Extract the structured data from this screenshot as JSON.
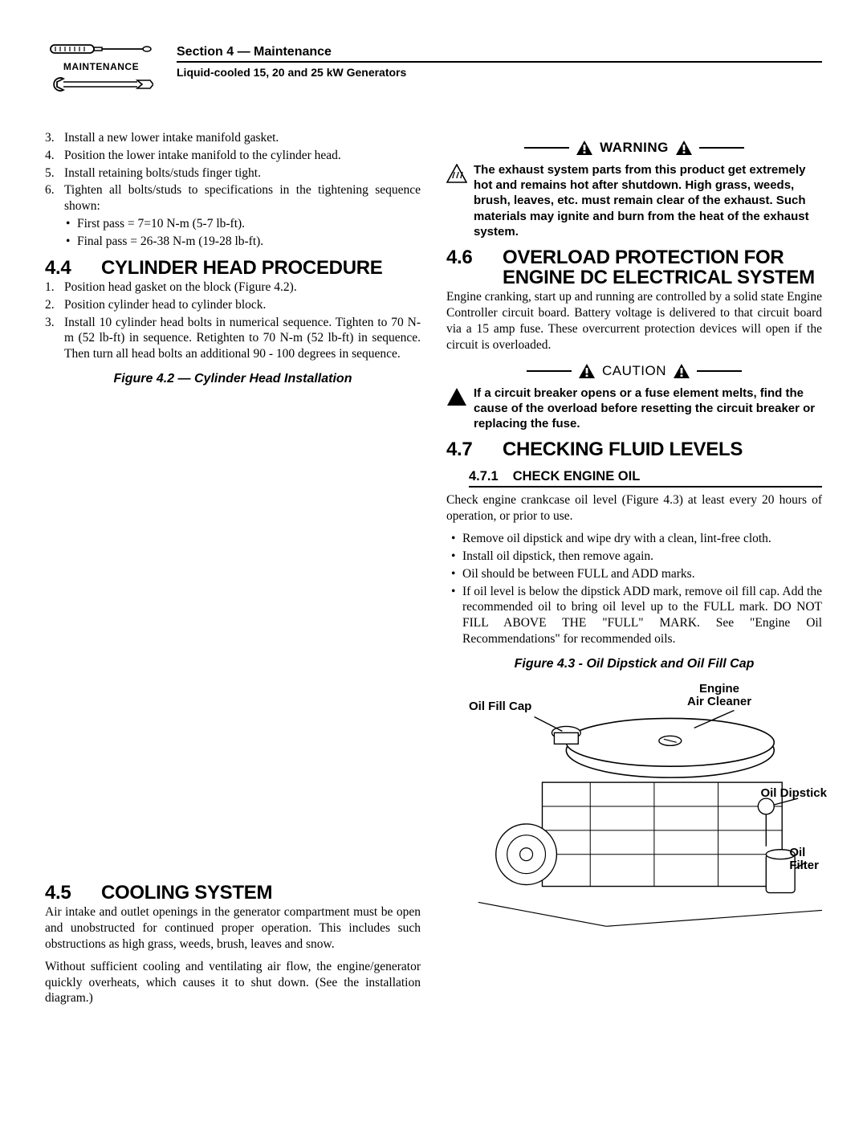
{
  "header": {
    "maintenance_label": "MAINTENANCE",
    "section_title": "Section 4 — Maintenance",
    "subtitle": "Liquid-cooled 15, 20 and 25 kW Generators"
  },
  "left": {
    "steps_cont": [
      {
        "n": "3.",
        "t": "Install a new lower intake manifold gasket."
      },
      {
        "n": "4.",
        "t": "Position the lower intake manifold to the cylinder head."
      },
      {
        "n": "5.",
        "t": "Install retaining bolts/studs finger tight."
      },
      {
        "n": "6.",
        "t": "Tighten all bolts/studs to specifications in the tightening sequence shown:"
      }
    ],
    "step6_bullets": [
      "First pass = 7=10 N-m (5-7 lb-ft).",
      "Final pass = 26-38 N-m (19-28 lb-ft)."
    ],
    "sec44_num": "4.4",
    "sec44_title": "CYLINDER HEAD PROCEDURE",
    "sec44_steps": [
      {
        "n": "1.",
        "t": "Position head gasket on the block (Figure 4.2)."
      },
      {
        "n": "2.",
        "t": "Position cylinder head to cylinder block."
      },
      {
        "n": "3.",
        "t": "Install 10 cylinder head bolts in numerical sequence. Tighten to 70 N-m (52 lb-ft) in sequence. Retighten to 70 N-m (52 lb-ft) in sequence. Then turn all head bolts an additional 90 - 100 degrees in sequence."
      }
    ],
    "fig42_caption": "Figure 4.2 — Cylinder Head Installation",
    "sec45_num": "4.5",
    "sec45_title": "COOLING SYSTEM",
    "sec45_p1": "Air intake and outlet openings in the generator compartment must be open and unobstructed for continued proper operation. This includes such obstructions as high grass, weeds, brush, leaves and snow.",
    "sec45_p2": "Without sufficient cooling and ventilating air flow, the engine/generator quickly overheats, which causes it to shut down. (See the installation diagram.)"
  },
  "right": {
    "warning_label": "WARNING",
    "warning_text": "The exhaust system parts from this product get extremely hot and remains hot after shutdown. High grass, weeds, brush, leaves, etc. must remain clear of the exhaust. Such materials may ignite and burn from the heat of the exhaust system.",
    "sec46_num": "4.6",
    "sec46_title": "OVERLOAD PROTECTION FOR ENGINE DC ELECTRICAL SYSTEM",
    "sec46_p": "Engine cranking, start up and running are controlled by a solid state Engine Controller circuit board. Battery voltage is delivered to that circuit board via a 15 amp fuse. These overcurrent protection devices will open if the circuit is overloaded.",
    "caution_label": "CAUTION",
    "caution_text": "If a circuit breaker opens or a fuse element melts, find the cause of the overload before resetting the circuit breaker or replacing the fuse.",
    "sec47_num": "4.7",
    "sec47_title": "CHECKING FLUID LEVELS",
    "sec471_num": "4.7.1",
    "sec471_title": "CHECK ENGINE OIL",
    "sec471_p": "Check engine crankcase oil level (Figure 4.3) at least every 20 hours of operation, or prior to use.",
    "sec471_bullets": [
      "Remove oil dipstick and wipe dry with a clean, lint-free cloth.",
      "Install oil dipstick, then remove again.",
      "Oil should be between FULL and ADD marks.",
      "If oil level is below the dipstick ADD mark, remove oil fill cap. Add the recommended oil to bring oil level up to the FULL mark. DO NOT FILL ABOVE THE \"FULL\" MARK. See \"Engine Oil Recommendations\" for recommended oils."
    ],
    "fig43_caption": "Figure 4.3 - Oil Dipstick and Oil Fill Cap",
    "fig43_labels": {
      "oil_fill_cap": "Oil Fill Cap",
      "engine_air_cleaner": "Engine\nAir Cleaner",
      "oil_dipstick": "Oil Dipstick",
      "oil_filter": "Oil\nFilter"
    }
  }
}
